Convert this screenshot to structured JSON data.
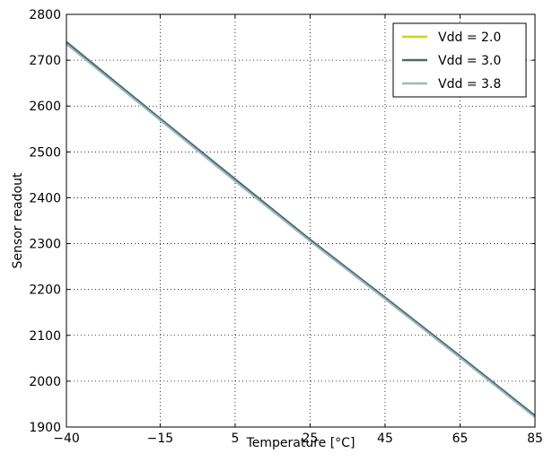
{
  "chart_data": {
    "type": "line",
    "xlabel": "Temperature [°C]",
    "ylabel": "Sensor readout",
    "xlim": [
      -40,
      85
    ],
    "ylim": [
      1900,
      2800
    ],
    "xticks": [
      -40,
      -15,
      5,
      25,
      45,
      65,
      85
    ],
    "xtick_labels": [
      "−40",
      "−15",
      "5",
      "25",
      "45",
      "65",
      "85"
    ],
    "yticks": [
      1900,
      2000,
      2100,
      2200,
      2300,
      2400,
      2500,
      2600,
      2700,
      2800
    ],
    "ytick_labels": [
      "1900",
      "2000",
      "2100",
      "2200",
      "2300",
      "2400",
      "2500",
      "2600",
      "2700",
      "2800"
    ],
    "grid": true,
    "legend_position": "top-right",
    "series": [
      {
        "name": "Vdd = 2.0",
        "color": "#c5d41e",
        "x": [
          -40,
          -15,
          5,
          25,
          45,
          65,
          85
        ],
        "y": [
          2737,
          2570,
          2438,
          2306,
          2180,
          2052,
          1922
        ]
      },
      {
        "name": "Vdd = 3.0",
        "color": "#4a6b72",
        "x": [
          -40,
          -15,
          5,
          25,
          45,
          65,
          85
        ],
        "y": [
          2740,
          2573,
          2441,
          2309,
          2183,
          2055,
          1925
        ]
      },
      {
        "name": "Vdd = 3.8",
        "color": "#9db7c3",
        "x": [
          -40,
          -15,
          5,
          25,
          45,
          65,
          85
        ],
        "y": [
          2735,
          2569,
          2436,
          2305,
          2179,
          2051,
          1921
        ]
      }
    ]
  }
}
